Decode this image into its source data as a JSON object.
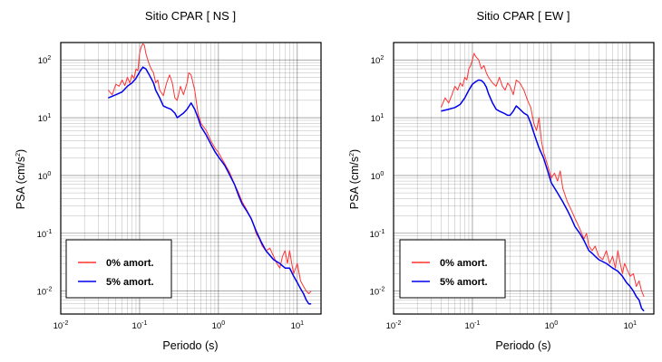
{
  "colors": {
    "undamped": "#ff3333",
    "damped": "#0000ee",
    "grid": "#000000",
    "background": "#ffffff"
  },
  "chart_data": [
    {
      "type": "line",
      "title": "Sitio CPAR [ NS ]",
      "xlabel": "Periodo (s)",
      "ylabel": "PSA (cm/s",
      "ylabel_sup": "2",
      "ylabel_end": ")",
      "x_scale": "log",
      "y_scale": "log",
      "xlim": [
        0.01,
        20
      ],
      "ylim": [
        0.004,
        200
      ],
      "grid": true,
      "legend_position": "bottom-left",
      "x_ticks": [
        {
          "base": "10",
          "exp": "-2",
          "value": 0.01
        },
        {
          "base": "10",
          "exp": "-1",
          "value": 0.1
        },
        {
          "base": "10",
          "exp": "0",
          "value": 1
        },
        {
          "base": "10",
          "exp": "1",
          "value": 10
        }
      ],
      "y_ticks": [
        {
          "base": "10",
          "exp": "-2",
          "value": 0.01
        },
        {
          "base": "10",
          "exp": "-1",
          "value": 0.1
        },
        {
          "base": "10",
          "exp": "0",
          "value": 1
        },
        {
          "base": "10",
          "exp": "1",
          "value": 10
        },
        {
          "base": "10",
          "exp": "2",
          "value": 100
        }
      ],
      "series": [
        {
          "name": "0% amort.",
          "color": "#ff3333",
          "points": [
            [
              0.04,
              30
            ],
            [
              0.045,
              25
            ],
            [
              0.05,
              38
            ],
            [
              0.055,
              35
            ],
            [
              0.06,
              45
            ],
            [
              0.065,
              36
            ],
            [
              0.07,
              50
            ],
            [
              0.075,
              40
            ],
            [
              0.08,
              55
            ],
            [
              0.085,
              48
            ],
            [
              0.09,
              70
            ],
            [
              0.095,
              65
            ],
            [
              0.1,
              130
            ],
            [
              0.105,
              170
            ],
            [
              0.11,
              190
            ],
            [
              0.115,
              180
            ],
            [
              0.12,
              130
            ],
            [
              0.13,
              90
            ],
            [
              0.14,
              70
            ],
            [
              0.15,
              60
            ],
            [
              0.16,
              40
            ],
            [
              0.17,
              45
            ],
            [
              0.18,
              30
            ],
            [
              0.2,
              24
            ],
            [
              0.22,
              40
            ],
            [
              0.24,
              55
            ],
            [
              0.26,
              40
            ],
            [
              0.28,
              22
            ],
            [
              0.3,
              20
            ],
            [
              0.33,
              35
            ],
            [
              0.36,
              25
            ],
            [
              0.4,
              40
            ],
            [
              0.42,
              60
            ],
            [
              0.45,
              55
            ],
            [
              0.5,
              30
            ],
            [
              0.55,
              12
            ],
            [
              0.6,
              8
            ],
            [
              0.7,
              6
            ],
            [
              0.8,
              4
            ],
            [
              0.9,
              3
            ],
            [
              1.0,
              2.5
            ],
            [
              1.2,
              1.6
            ],
            [
              1.4,
              1.1
            ],
            [
              1.6,
              0.7
            ],
            [
              1.8,
              0.5
            ],
            [
              2.0,
              0.35
            ],
            [
              2.3,
              0.25
            ],
            [
              2.6,
              0.18
            ],
            [
              2.8,
              0.14
            ],
            [
              3.0,
              0.1
            ],
            [
              3.3,
              0.08
            ],
            [
              3.6,
              0.06
            ],
            [
              4.0,
              0.05
            ],
            [
              4.5,
              0.055
            ],
            [
              5.0,
              0.04
            ],
            [
              5.5,
              0.03
            ],
            [
              6.0,
              0.025
            ],
            [
              6.5,
              0.04
            ],
            [
              7.0,
              0.05
            ],
            [
              7.5,
              0.03
            ],
            [
              8.0,
              0.05
            ],
            [
              8.5,
              0.03
            ],
            [
              9.0,
              0.02
            ],
            [
              10.0,
              0.03
            ],
            [
              11.0,
              0.015
            ],
            [
              12.0,
              0.012
            ],
            [
              13.0,
              0.01
            ],
            [
              14.0,
              0.009
            ],
            [
              15.0,
              0.01
            ]
          ]
        },
        {
          "name": "5% amort.",
          "color": "#0000ee",
          "points": [
            [
              0.04,
              22
            ],
            [
              0.05,
              25
            ],
            [
              0.06,
              28
            ],
            [
              0.07,
              35
            ],
            [
              0.08,
              40
            ],
            [
              0.09,
              48
            ],
            [
              0.1,
              62
            ],
            [
              0.11,
              75
            ],
            [
              0.12,
              70
            ],
            [
              0.13,
              58
            ],
            [
              0.14,
              48
            ],
            [
              0.15,
              40
            ],
            [
              0.16,
              30
            ],
            [
              0.18,
              22
            ],
            [
              0.2,
              16
            ],
            [
              0.22,
              15
            ],
            [
              0.25,
              14
            ],
            [
              0.28,
              12
            ],
            [
              0.3,
              10
            ],
            [
              0.33,
              11
            ],
            [
              0.36,
              12
            ],
            [
              0.4,
              14
            ],
            [
              0.45,
              18
            ],
            [
              0.5,
              14
            ],
            [
              0.55,
              10
            ],
            [
              0.6,
              7
            ],
            [
              0.7,
              5
            ],
            [
              0.8,
              3.5
            ],
            [
              0.9,
              2.6
            ],
            [
              1.0,
              2.1
            ],
            [
              1.2,
              1.5
            ],
            [
              1.4,
              1.0
            ],
            [
              1.6,
              0.7
            ],
            [
              1.8,
              0.45
            ],
            [
              2.0,
              0.32
            ],
            [
              2.3,
              0.24
            ],
            [
              2.6,
              0.18
            ],
            [
              3.0,
              0.11
            ],
            [
              3.5,
              0.07
            ],
            [
              4.0,
              0.05
            ],
            [
              5.0,
              0.035
            ],
            [
              6.0,
              0.03
            ],
            [
              7.0,
              0.025
            ],
            [
              8.0,
              0.025
            ],
            [
              9.0,
              0.018
            ],
            [
              10.0,
              0.014
            ],
            [
              11.0,
              0.011
            ],
            [
              12.0,
              0.009
            ],
            [
              13.0,
              0.007
            ],
            [
              14.0,
              0.006
            ],
            [
              15.0,
              0.006
            ]
          ]
        }
      ]
    },
    {
      "type": "line",
      "title": "Sitio CPAR [ EW ]",
      "xlabel": "Periodo (s)",
      "ylabel": "PSA (cm/s",
      "ylabel_sup": "2",
      "ylabel_end": ")",
      "x_scale": "log",
      "y_scale": "log",
      "xlim": [
        0.01,
        20
      ],
      "ylim": [
        0.004,
        200
      ],
      "grid": true,
      "legend_position": "bottom-left",
      "x_ticks": [
        {
          "base": "10",
          "exp": "-2",
          "value": 0.01
        },
        {
          "base": "10",
          "exp": "-1",
          "value": 0.1
        },
        {
          "base": "10",
          "exp": "0",
          "value": 1
        },
        {
          "base": "10",
          "exp": "1",
          "value": 10
        }
      ],
      "y_ticks": [
        {
          "base": "10",
          "exp": "-2",
          "value": 0.01
        },
        {
          "base": "10",
          "exp": "-1",
          "value": 0.1
        },
        {
          "base": "10",
          "exp": "0",
          "value": 1
        },
        {
          "base": "10",
          "exp": "1",
          "value": 10
        },
        {
          "base": "10",
          "exp": "2",
          "value": 100
        }
      ],
      "series": [
        {
          "name": "0% amort.",
          "color": "#ff3333",
          "points": [
            [
              0.04,
              15
            ],
            [
              0.045,
              22
            ],
            [
              0.05,
              18
            ],
            [
              0.055,
              25
            ],
            [
              0.06,
              35
            ],
            [
              0.065,
              30
            ],
            [
              0.07,
              40
            ],
            [
              0.075,
              35
            ],
            [
              0.08,
              50
            ],
            [
              0.085,
              45
            ],
            [
              0.09,
              70
            ],
            [
              0.095,
              80
            ],
            [
              0.1,
              100
            ],
            [
              0.105,
              130
            ],
            [
              0.11,
              115
            ],
            [
              0.12,
              100
            ],
            [
              0.13,
              70
            ],
            [
              0.14,
              80
            ],
            [
              0.15,
              60
            ],
            [
              0.16,
              50
            ],
            [
              0.18,
              40
            ],
            [
              0.2,
              35
            ],
            [
              0.22,
              50
            ],
            [
              0.24,
              35
            ],
            [
              0.26,
              30
            ],
            [
              0.28,
              40
            ],
            [
              0.3,
              35
            ],
            [
              0.33,
              25
            ],
            [
              0.36,
              45
            ],
            [
              0.4,
              40
            ],
            [
              0.45,
              30
            ],
            [
              0.5,
              20
            ],
            [
              0.55,
              15
            ],
            [
              0.6,
              8
            ],
            [
              0.65,
              6
            ],
            [
              0.7,
              10
            ],
            [
              0.75,
              4
            ],
            [
              0.8,
              2.5
            ],
            [
              0.9,
              1.5
            ],
            [
              1.0,
              0.9
            ],
            [
              1.1,
              1.1
            ],
            [
              1.2,
              0.8
            ],
            [
              1.3,
              1.2
            ],
            [
              1.4,
              0.6
            ],
            [
              1.6,
              0.35
            ],
            [
              1.8,
              0.25
            ],
            [
              2.0,
              0.18
            ],
            [
              2.3,
              0.12
            ],
            [
              2.6,
              0.08
            ],
            [
              2.8,
              0.1
            ],
            [
              3.0,
              0.06
            ],
            [
              3.3,
              0.05
            ],
            [
              3.6,
              0.06
            ],
            [
              4.0,
              0.04
            ],
            [
              4.5,
              0.035
            ],
            [
              5.0,
              0.05
            ],
            [
              5.5,
              0.03
            ],
            [
              6.0,
              0.04
            ],
            [
              6.5,
              0.025
            ],
            [
              7.0,
              0.05
            ],
            [
              7.5,
              0.03
            ],
            [
              8.0,
              0.02
            ],
            [
              8.5,
              0.03
            ],
            [
              9.0,
              0.025
            ],
            [
              10.0,
              0.018
            ],
            [
              11.0,
              0.02
            ],
            [
              12.0,
              0.012
            ],
            [
              13.0,
              0.015
            ],
            [
              14.0,
              0.01
            ],
            [
              15.0,
              0.008
            ]
          ]
        },
        {
          "name": "5% amort.",
          "color": "#0000ee",
          "points": [
            [
              0.04,
              13
            ],
            [
              0.05,
              14
            ],
            [
              0.06,
              15
            ],
            [
              0.07,
              17
            ],
            [
              0.08,
              22
            ],
            [
              0.09,
              30
            ],
            [
              0.1,
              38
            ],
            [
              0.11,
              42
            ],
            [
              0.12,
              45
            ],
            [
              0.13,
              44
            ],
            [
              0.14,
              40
            ],
            [
              0.15,
              34
            ],
            [
              0.16,
              26
            ],
            [
              0.18,
              18
            ],
            [
              0.2,
              14
            ],
            [
              0.22,
              13
            ],
            [
              0.25,
              12
            ],
            [
              0.28,
              11
            ],
            [
              0.3,
              11
            ],
            [
              0.33,
              13
            ],
            [
              0.36,
              16
            ],
            [
              0.4,
              14
            ],
            [
              0.45,
              12
            ],
            [
              0.5,
              11
            ],
            [
              0.55,
              8
            ],
            [
              0.6,
              5.5
            ],
            [
              0.65,
              4
            ],
            [
              0.7,
              3
            ],
            [
              0.8,
              2
            ],
            [
              0.9,
              1.2
            ],
            [
              1.0,
              0.75
            ],
            [
              1.2,
              0.5
            ],
            [
              1.4,
              0.35
            ],
            [
              1.6,
              0.25
            ],
            [
              1.8,
              0.18
            ],
            [
              2.0,
              0.13
            ],
            [
              2.3,
              0.1
            ],
            [
              2.6,
              0.075
            ],
            [
              3.0,
              0.05
            ],
            [
              3.3,
              0.045
            ],
            [
              3.6,
              0.04
            ],
            [
              4.0,
              0.035
            ],
            [
              5.0,
              0.03
            ],
            [
              6.0,
              0.025
            ],
            [
              7.0,
              0.022
            ],
            [
              8.0,
              0.018
            ],
            [
              9.0,
              0.014
            ],
            [
              10.0,
              0.012
            ],
            [
              11.0,
              0.01
            ],
            [
              12.0,
              0.008
            ],
            [
              13.0,
              0.007
            ],
            [
              14.0,
              0.005
            ],
            [
              15.0,
              0.0045
            ]
          ]
        }
      ]
    }
  ]
}
